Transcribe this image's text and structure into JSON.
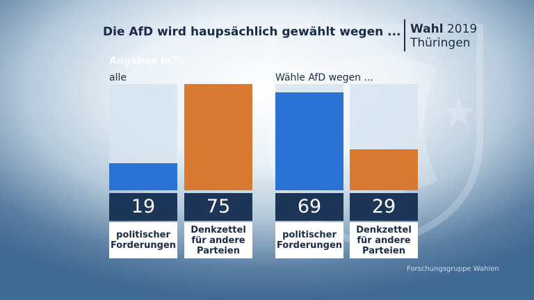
{
  "title": "Die AfD wird haupsächlich gewählt wegen ...",
  "logo": {
    "wahl": "Wahl",
    "year": "2019",
    "region": "Thüringen"
  },
  "unit_label": "Angaben in %",
  "source": "Forschungsgruppe Wahlen",
  "colors": {
    "politisch": "#2a73d4",
    "denkzettel": "#d97a32",
    "value_bg": "#1d3557",
    "track": "#d7e4ee"
  },
  "chart_data": {
    "type": "bar",
    "title": "Die AfD wird haupsächlich gewählt wegen ...",
    "ylabel": "Angaben in %",
    "ylim": [
      0,
      75
    ],
    "groups": [
      {
        "label": "alle",
        "categories": [
          "politischer Forderungen",
          "Denkzettel für andere Parteien"
        ],
        "values": [
          19,
          75
        ]
      },
      {
        "label": "Wähle AfD wegen ...",
        "categories": [
          "politischer Forderungen",
          "Denkzettel für andere Parteien"
        ],
        "values": [
          69,
          29
        ]
      }
    ],
    "bars": [
      {
        "value": "19",
        "category": "politischer\nForderungen"
      },
      {
        "value": "75",
        "category": "Denkzettel\nfür andere\nParteien"
      },
      {
        "value": "69",
        "category": "politischer\nForderungen"
      },
      {
        "value": "29",
        "category": "Denkzettel\nfür andere\nParteien"
      }
    ]
  }
}
